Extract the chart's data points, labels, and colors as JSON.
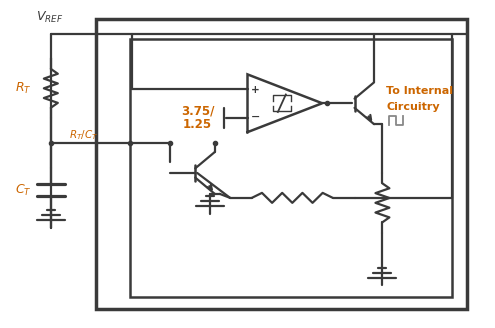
{
  "fig_width": 4.95,
  "fig_height": 3.28,
  "dpi": 100,
  "bg_color": "#ffffff",
  "line_color": "#3a3a3a",
  "orange_color": "#cc6600",
  "vref_label": "$V_{REF}$",
  "rt_label": "$R_T$",
  "rt_ct_label": "$R_T/C_T$",
  "ct_label": "$C_T$",
  "volt_label1": "3.75/",
  "volt_label2": "1.25",
  "to_internal1": "To Internal",
  "to_internal2": "Circuitry"
}
